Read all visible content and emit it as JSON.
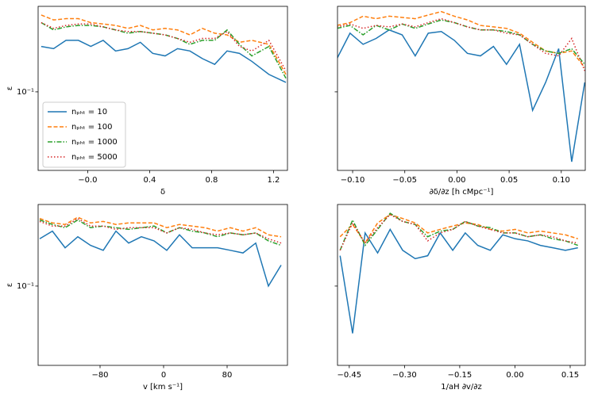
{
  "chart_data": [
    {
      "type": "line",
      "xlabel": "δ",
      "ylabel": "ε",
      "ylog": true,
      "legend": "lower left",
      "xlim": [
        -0.32,
        1.29
      ],
      "xticks": [
        {
          "value": 0,
          "label": "−0.0"
        },
        0.4,
        0.8,
        1.2
      ],
      "ylim": [
        0.022,
        0.52
      ],
      "yticks": [
        {
          "value": 0.1,
          "label": "10⁻¹"
        }
      ],
      "x": [
        -0.3,
        -0.22,
        -0.14,
        -0.06,
        0.02,
        0.1,
        0.18,
        0.26,
        0.34,
        0.42,
        0.5,
        0.58,
        0.66,
        0.74,
        0.82,
        0.9,
        0.98,
        1.06,
        1.17,
        1.28
      ],
      "series": [
        {
          "name": "nₚₕₜ = 10",
          "color": "#1f77b4",
          "linestyle": "solid",
          "values": [
            0.24,
            0.23,
            0.27,
            0.27,
            0.24,
            0.27,
            0.22,
            0.23,
            0.26,
            0.21,
            0.2,
            0.23,
            0.22,
            0.19,
            0.17,
            0.22,
            0.21,
            0.18,
            0.14,
            0.12
          ]
        },
        {
          "name": "nₚₕₜ = 100",
          "color": "#ff7f0e",
          "linestyle": "dashed",
          "values": [
            0.44,
            0.4,
            0.41,
            0.41,
            0.38,
            0.37,
            0.36,
            0.34,
            0.36,
            0.33,
            0.34,
            0.33,
            0.3,
            0.34,
            0.31,
            0.3,
            0.26,
            0.27,
            0.25,
            0.14
          ]
        },
        {
          "name": "nₚₕₜ = 1000",
          "color": "#2ca02c",
          "linestyle": "dashdot",
          "values": [
            0.38,
            0.33,
            0.35,
            0.36,
            0.36,
            0.35,
            0.33,
            0.31,
            0.32,
            0.31,
            0.3,
            0.28,
            0.25,
            0.27,
            0.27,
            0.33,
            0.25,
            0.2,
            0.24,
            0.13
          ]
        },
        {
          "name": "nₚₕₜ = 5000",
          "color": "#d62728",
          "linestyle": "dotted",
          "values": [
            0.38,
            0.34,
            0.36,
            0.37,
            0.37,
            0.35,
            0.33,
            0.32,
            0.32,
            0.31,
            0.3,
            0.28,
            0.26,
            0.28,
            0.28,
            0.32,
            0.24,
            0.22,
            0.27,
            0.15
          ]
        }
      ]
    },
    {
      "type": "line",
      "xlabel": "∂δ/∂z [h cMpc⁻¹]",
      "ylog": true,
      "xlim": [
        -0.1145,
        0.123
      ],
      "xticks": [
        {
          "value": -0.1,
          "label": "−0.10"
        },
        {
          "value": -0.05,
          "label": "−0.05"
        },
        {
          "value": 0,
          "label": "0.00"
        },
        {
          "value": 0.05,
          "label": "0.05"
        },
        {
          "value": 0.1,
          "label": "0.10"
        }
      ],
      "ylim": [
        0.022,
        0.52
      ],
      "yticks": [
        0.1
      ],
      "x": [
        -0.115,
        -0.1025,
        -0.09,
        -0.0775,
        -0.065,
        -0.0525,
        -0.04,
        -0.0275,
        -0.015,
        -0.0025,
        0.01,
        0.0225,
        0.035,
        0.0475,
        0.06,
        0.0725,
        0.085,
        0.0975,
        0.11,
        0.1225
      ],
      "series": [
        {
          "color": "#1f77b4",
          "linestyle": "solid",
          "values": [
            0.19,
            0.31,
            0.25,
            0.28,
            0.33,
            0.3,
            0.2,
            0.31,
            0.32,
            0.27,
            0.21,
            0.2,
            0.24,
            0.17,
            0.25,
            0.07,
            0.12,
            0.23,
            0.026,
            0.12
          ]
        },
        {
          "color": "#ff7f0e",
          "linestyle": "dashed",
          "values": [
            0.36,
            0.38,
            0.43,
            0.41,
            0.43,
            0.42,
            0.41,
            0.44,
            0.47,
            0.43,
            0.4,
            0.36,
            0.35,
            0.34,
            0.31,
            0.26,
            0.22,
            0.21,
            0.22,
            0.16
          ]
        },
        {
          "color": "#2ca02c",
          "linestyle": "dashdot",
          "values": [
            0.34,
            0.36,
            0.3,
            0.36,
            0.33,
            0.37,
            0.34,
            0.37,
            0.4,
            0.38,
            0.35,
            0.33,
            0.33,
            0.32,
            0.3,
            0.25,
            0.22,
            0.21,
            0.23,
            0.17
          ]
        },
        {
          "color": "#d62728",
          "linestyle": "dotted",
          "values": [
            0.35,
            0.37,
            0.34,
            0.36,
            0.35,
            0.37,
            0.35,
            0.38,
            0.41,
            0.38,
            0.35,
            0.33,
            0.33,
            0.31,
            0.3,
            0.25,
            0.21,
            0.2,
            0.28,
            0.15
          ]
        }
      ]
    },
    {
      "type": "line",
      "xlabel": "v [km s⁻¹]",
      "ylabel": "ε",
      "ylog": true,
      "xlim": [
        -158,
        156
      ],
      "xticks": [
        {
          "value": -80,
          "label": "−80"
        },
        0,
        80
      ],
      "ylim": [
        0.0215,
        0.486
      ],
      "yticks": [
        {
          "value": 0.1,
          "label": "10⁻¹"
        }
      ],
      "x": [
        -156,
        -140,
        -124,
        -108,
        -92,
        -76,
        -60,
        -44,
        -28,
        -12,
        4,
        20,
        36,
        52,
        68,
        84,
        100,
        116,
        132,
        148
      ],
      "series": [
        {
          "color": "#1f77b4",
          "linestyle": "solid",
          "values": [
            0.25,
            0.29,
            0.21,
            0.26,
            0.22,
            0.2,
            0.29,
            0.23,
            0.26,
            0.24,
            0.2,
            0.27,
            0.21,
            0.21,
            0.21,
            0.2,
            0.19,
            0.23,
            0.1,
            0.15
          ]
        },
        {
          "color": "#ff7f0e",
          "linestyle": "dashed",
          "values": [
            0.37,
            0.34,
            0.33,
            0.38,
            0.34,
            0.35,
            0.33,
            0.34,
            0.34,
            0.34,
            0.31,
            0.33,
            0.32,
            0.31,
            0.29,
            0.31,
            0.29,
            0.31,
            0.27,
            0.26
          ]
        },
        {
          "color": "#2ca02c",
          "linestyle": "dashdot",
          "values": [
            0.36,
            0.33,
            0.31,
            0.36,
            0.31,
            0.32,
            0.31,
            0.3,
            0.31,
            0.32,
            0.28,
            0.31,
            0.29,
            0.28,
            0.26,
            0.28,
            0.27,
            0.28,
            0.24,
            0.22
          ]
        },
        {
          "color": "#d62728",
          "linestyle": "dotted",
          "values": [
            0.35,
            0.32,
            0.32,
            0.37,
            0.32,
            0.32,
            0.3,
            0.31,
            0.31,
            0.31,
            0.28,
            0.31,
            0.3,
            0.28,
            0.27,
            0.28,
            0.27,
            0.28,
            0.25,
            0.23
          ]
        }
      ]
    },
    {
      "type": "line",
      "xlabel": "1/aH ∂v/∂z",
      "ylog": true,
      "xlim": [
        -0.482,
        0.191
      ],
      "xticks": [
        {
          "value": -0.45,
          "label": "−0.45"
        },
        {
          "value": -0.3,
          "label": "−0.30"
        },
        {
          "value": -0.15,
          "label": "−0.15"
        },
        {
          "value": 0,
          "label": "0.00"
        },
        0.15
      ],
      "ylim": [
        0.0215,
        0.486
      ],
      "yticks": [
        0.1
      ],
      "x": [
        -0.475,
        -0.441,
        -0.407,
        -0.373,
        -0.339,
        -0.305,
        -0.271,
        -0.237,
        -0.203,
        -0.169,
        -0.135,
        -0.101,
        -0.067,
        -0.033,
        0.001,
        0.035,
        0.069,
        0.103,
        0.137,
        0.171
      ],
      "series": [
        {
          "color": "#1f77b4",
          "linestyle": "solid",
          "values": [
            0.18,
            0.04,
            0.28,
            0.19,
            0.3,
            0.2,
            0.17,
            0.18,
            0.28,
            0.2,
            0.28,
            0.22,
            0.2,
            0.27,
            0.25,
            0.24,
            0.22,
            0.21,
            0.2,
            0.21
          ]
        },
        {
          "color": "#ff7f0e",
          "linestyle": "dashed",
          "values": [
            0.26,
            0.33,
            0.23,
            0.34,
            0.4,
            0.37,
            0.34,
            0.28,
            0.3,
            0.32,
            0.34,
            0.33,
            0.3,
            0.29,
            0.3,
            0.28,
            0.29,
            0.28,
            0.27,
            0.25
          ]
        },
        {
          "color": "#2ca02c",
          "linestyle": "dashdot",
          "values": [
            0.2,
            0.36,
            0.22,
            0.3,
            0.41,
            0.35,
            0.33,
            0.26,
            0.29,
            0.3,
            0.35,
            0.32,
            0.31,
            0.28,
            0.28,
            0.26,
            0.27,
            0.25,
            0.24,
            0.22
          ]
        },
        {
          "color": "#d62728",
          "linestyle": "dotted",
          "values": [
            0.2,
            0.34,
            0.23,
            0.31,
            0.4,
            0.35,
            0.33,
            0.24,
            0.28,
            0.3,
            0.35,
            0.32,
            0.3,
            0.28,
            0.28,
            0.26,
            0.27,
            0.26,
            0.24,
            0.23
          ]
        }
      ]
    }
  ]
}
